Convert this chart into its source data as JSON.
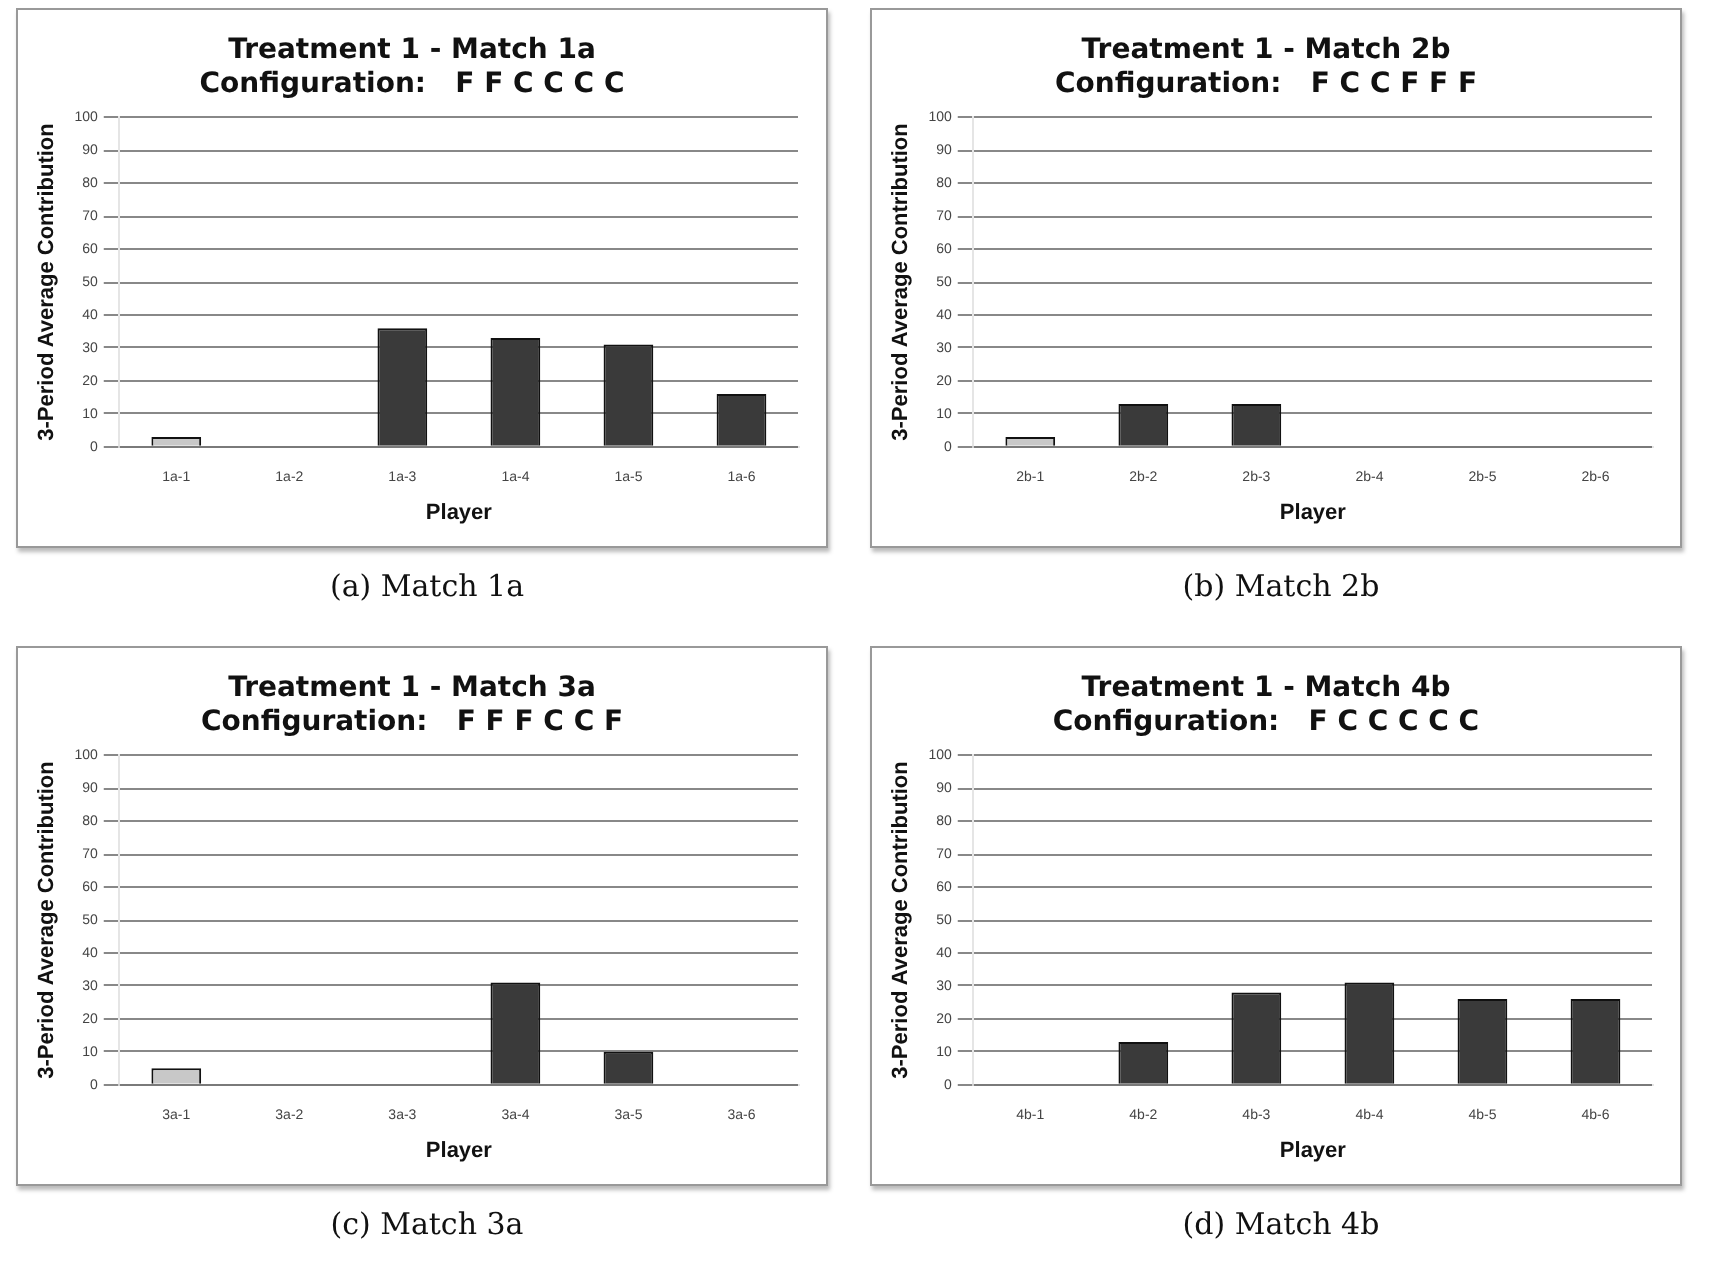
{
  "chart_data": [
    {
      "type": "bar",
      "title": "Treatment 1 - Match 1a",
      "subtitle": "Configuration:   F F C C C C",
      "xlabel": "Player",
      "ylabel": "3-Period Average Contribution",
      "categories": [
        "1a-1",
        "1a-2",
        "1a-3",
        "1a-4",
        "1a-5",
        "1a-6"
      ],
      "values": [
        3,
        0,
        36,
        33,
        31,
        16
      ],
      "colors": [
        "#c8c8c8",
        "#a0a0a0",
        "#3a3a3a",
        "#3a3a3a",
        "#3a3a3a",
        "#3a3a3a"
      ],
      "ylim": [
        0,
        100
      ],
      "yticks": [
        0,
        10,
        20,
        30,
        40,
        50,
        60,
        70,
        80,
        90,
        100
      ],
      "grid": "y",
      "legend": false,
      "annotations": [
        "(a) Match 1a"
      ]
    },
    {
      "type": "bar",
      "title": "Treatment 1 - Match 2b",
      "subtitle": "Configuration:   F C C F F F",
      "xlabel": "Player",
      "ylabel": "3-Period Average Contribution",
      "categories": [
        "2b-1",
        "2b-2",
        "2b-3",
        "2b-4",
        "2b-5",
        "2b-6"
      ],
      "values": [
        3,
        13,
        13,
        0,
        0,
        0
      ],
      "colors": [
        "#c8c8c8",
        "#3a3a3a",
        "#3a3a3a",
        "#a0a0a0",
        "#a0a0a0",
        "#a0a0a0"
      ],
      "ylim": [
        0,
        100
      ],
      "yticks": [
        0,
        10,
        20,
        30,
        40,
        50,
        60,
        70,
        80,
        90,
        100
      ],
      "grid": "y",
      "legend": false,
      "annotations": [
        "(b) Match 2b"
      ]
    },
    {
      "type": "bar",
      "title": "Treatment 1 - Match 3a",
      "subtitle": "Configuration:   F F F C C F",
      "xlabel": "Player",
      "ylabel": "3-Period Average Contribution",
      "categories": [
        "3a-1",
        "3a-2",
        "3a-3",
        "3a-4",
        "3a-5",
        "3a-6"
      ],
      "values": [
        5,
        0,
        0,
        31,
        10,
        0
      ],
      "colors": [
        "#c8c8c8",
        "#a0a0a0",
        "#a0a0a0",
        "#3a3a3a",
        "#3a3a3a",
        "#a0a0a0"
      ],
      "ylim": [
        0,
        100
      ],
      "yticks": [
        0,
        10,
        20,
        30,
        40,
        50,
        60,
        70,
        80,
        90,
        100
      ],
      "grid": "y",
      "legend": false,
      "annotations": [
        "(c) Match 3a"
      ]
    },
    {
      "type": "bar",
      "title": "Treatment 1 - Match 4b",
      "subtitle": "Configuration:   F C C C C C",
      "xlabel": "Player",
      "ylabel": "3-Period Average Contribution",
      "categories": [
        "4b-1",
        "4b-2",
        "4b-3",
        "4b-4",
        "4b-5",
        "4b-6"
      ],
      "values": [
        0,
        13,
        28,
        31,
        26,
        26
      ],
      "colors": [
        "#a0a0a0",
        "#3a3a3a",
        "#3a3a3a",
        "#3a3a3a",
        "#3a3a3a",
        "#3a3a3a"
      ],
      "ylim": [
        0,
        100
      ],
      "yticks": [
        0,
        10,
        20,
        30,
        40,
        50,
        60,
        70,
        80,
        90,
        100
      ],
      "grid": "y",
      "legend": false,
      "annotations": [
        "(d) Match 4b"
      ]
    }
  ]
}
